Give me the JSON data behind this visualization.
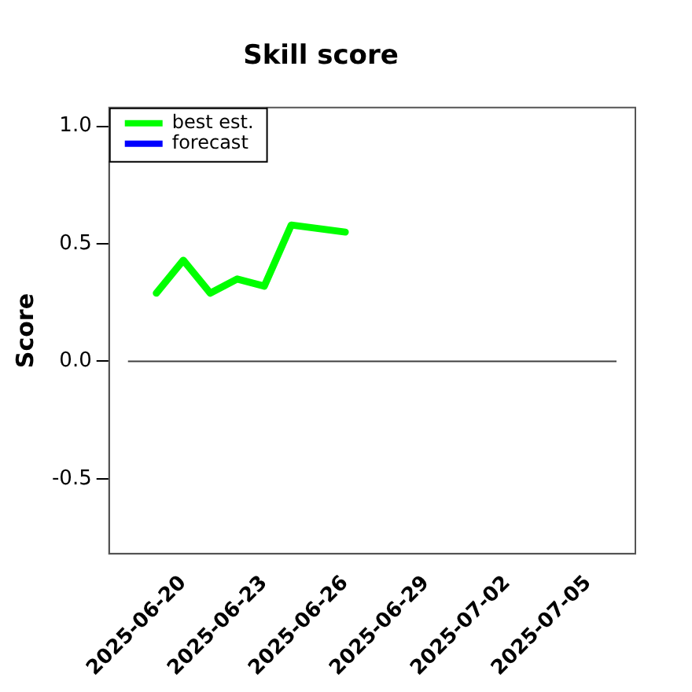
{
  "chart_data": {
    "type": "line",
    "title": "Skill score",
    "ylabel": "Score",
    "x": [
      "2025-06-19",
      "2025-06-20",
      "2025-06-21",
      "2025-06-22",
      "2025-06-23",
      "2025-06-24",
      "2025-06-26"
    ],
    "series": [
      {
        "name": "best est.",
        "color": "#00ff00",
        "values": [
          0.29,
          0.43,
          0.29,
          0.35,
          0.32,
          0.58,
          0.55
        ]
      },
      {
        "name": "forecast",
        "color": "#0000ff",
        "values": [
          null,
          null,
          null,
          null,
          null,
          null,
          null
        ]
      }
    ],
    "xlim": [
      "2025-06-17T06:00",
      "2025-07-06T18:00"
    ],
    "xticks": [
      "2025-06-20",
      "2025-06-23",
      "2025-06-26",
      "2025-06-29",
      "2025-07-02",
      "2025-07-05"
    ],
    "ylim": [
      -0.82,
      1.08
    ],
    "yticks": [
      -0.5,
      {
        "value": 0,
        "label": "0.0"
      },
      0.5,
      {
        "value": 1,
        "label": "1.0"
      }
    ],
    "ref_lines": [
      {
        "axis": "y",
        "value": 0,
        "color": "#404040"
      }
    ],
    "legend": "top left",
    "grid": false,
    "marker": "none",
    "line_style": "solid"
  }
}
